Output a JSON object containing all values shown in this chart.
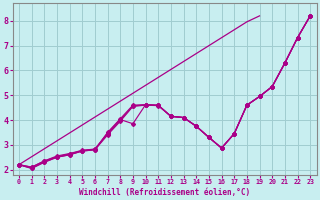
{
  "xlabel": "Windchill (Refroidissement éolien,°C)",
  "ylabel": "",
  "bg_color": "#c8eef0",
  "grid_color": "#a0ccd0",
  "line_color": "#aa0088",
  "x_values": [
    0,
    1,
    2,
    3,
    4,
    5,
    6,
    7,
    8,
    9,
    10,
    11,
    12,
    13,
    14,
    15,
    16,
    17,
    18,
    19,
    20,
    21,
    22,
    23
  ],
  "series": [
    [
      2.2,
      2.05,
      2.3,
      2.5,
      2.6,
      2.75,
      2.8,
      3.4,
      3.95,
      4.55,
      4.6,
      4.58,
      4.15,
      4.1,
      3.75,
      3.3,
      2.87,
      3.45,
      4.6,
      4.95,
      5.35,
      6.3,
      7.32,
      8.2
    ],
    [
      2.2,
      2.05,
      2.3,
      2.5,
      2.6,
      2.75,
      2.8,
      3.5,
      4.05,
      4.6,
      4.62,
      4.6,
      4.15,
      4.1,
      3.75,
      3.3,
      2.87,
      3.45,
      4.6,
      4.95,
      5.35,
      6.3,
      7.32,
      8.2
    ],
    [
      2.2,
      2.1,
      2.35,
      2.52,
      2.63,
      2.77,
      2.82,
      3.45,
      4.0,
      4.57,
      4.61,
      4.59,
      4.15,
      4.1,
      3.75,
      3.3,
      2.87,
      3.45,
      4.6,
      4.95,
      5.35,
      6.3,
      7.32,
      8.2
    ],
    [
      2.2,
      2.1,
      2.35,
      2.55,
      2.65,
      2.78,
      2.83,
      3.48,
      4.02,
      3.85,
      4.62,
      4.59,
      4.15,
      4.1,
      3.75,
      3.3,
      2.87,
      3.45,
      4.6,
      4.95,
      5.35,
      6.3,
      7.32,
      8.2
    ]
  ],
  "series_linear": [
    2.2,
    2.52,
    2.84,
    3.16,
    3.48,
    3.8,
    4.12,
    4.44,
    4.76,
    5.08,
    5.4,
    5.72,
    6.04,
    6.36,
    6.68,
    7.0,
    7.32,
    7.64,
    7.96,
    8.2
  ],
  "xlim": [
    -0.5,
    23.5
  ],
  "ylim": [
    1.8,
    8.7
  ],
  "xticks": [
    0,
    1,
    2,
    3,
    4,
    5,
    6,
    7,
    8,
    9,
    10,
    11,
    12,
    13,
    14,
    15,
    16,
    17,
    18,
    19,
    20,
    21,
    22,
    23
  ],
  "yticks": [
    2,
    3,
    4,
    5,
    6,
    7,
    8
  ],
  "figsize": [
    3.2,
    2.0
  ],
  "dpi": 100
}
